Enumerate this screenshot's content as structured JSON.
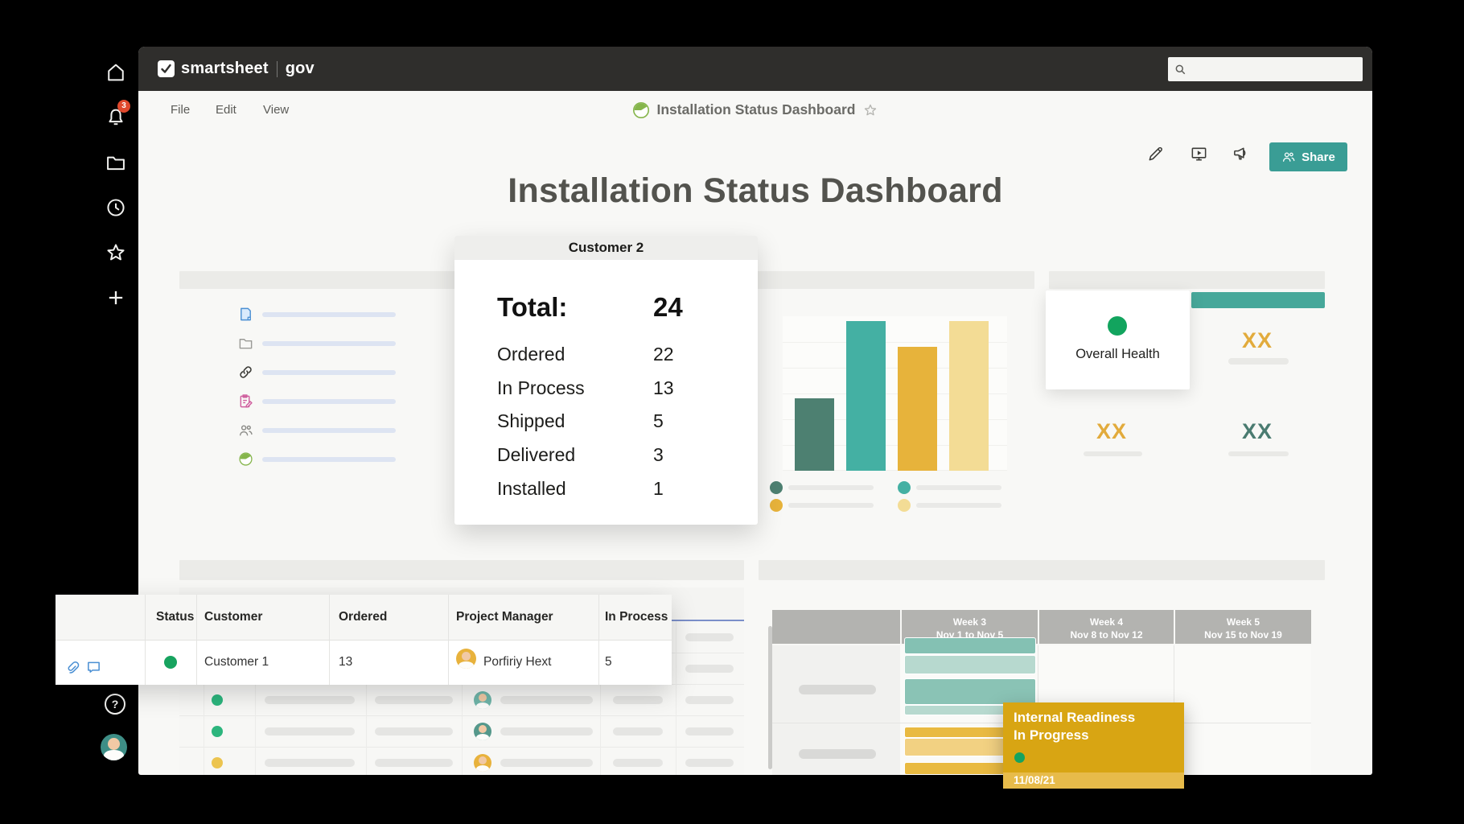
{
  "frame": {
    "brand": {
      "logo": "smartsheet",
      "suffix": "gov"
    },
    "sidebar": {
      "notification_badge": "3",
      "help_label": "?"
    }
  },
  "menubar": {
    "items": [
      "File",
      "Edit",
      "View"
    ],
    "doc_title": "Installation Status Dashboard",
    "share_label": "Share"
  },
  "dashboard": {
    "title": "Installation Status Dashboard",
    "customer_card": {
      "title": "Customer 2",
      "total_label": "Total:",
      "total_value": "24",
      "rows": [
        {
          "label": "Ordered",
          "value": "22"
        },
        {
          "label": "In Process",
          "value": "13"
        },
        {
          "label": "Shipped",
          "value": "5"
        },
        {
          "label": "Delivered",
          "value": "3"
        },
        {
          "label": "Installed",
          "value": "1"
        }
      ]
    },
    "health_card": {
      "label": "Overall Health",
      "status_color": "#12a45e"
    },
    "metrics": {
      "top_right": {
        "value": "XX",
        "color": "#e2ab3c"
      },
      "bottom_left": {
        "value": "XX",
        "color": "#e2ab3c"
      },
      "bottom_right": {
        "value": "XX",
        "color": "#4a7b70"
      }
    },
    "table": {
      "columns": [
        "Status",
        "Customer",
        "Ordered",
        "Project Manager",
        "In Process"
      ],
      "row": {
        "status_color": "#17a35f",
        "customer": "Customer 1",
        "ordered": "13",
        "project_manager": "Porfiriy Hext",
        "in_process": "5"
      }
    }
  },
  "chart_data": [
    {
      "type": "bar",
      "note": "Dashboard column-chart widget; axis and legend labels are placeholder bars with no text. Heights estimated as percent of plot height.",
      "values": [
        47,
        97,
        80,
        97
      ],
      "colors": [
        "#4d8071",
        "#44b0a3",
        "#e7b33b",
        "#f3dc95"
      ],
      "ylim": [
        0,
        100
      ],
      "grid": true,
      "legend_position": "bottom"
    },
    {
      "type": "gantt",
      "week_columns": [
        {
          "label": "Week 3",
          "range": "Nov 1 to Nov 5"
        },
        {
          "label": "Week 4",
          "range": "Nov 8 to Nov 12"
        },
        {
          "label": "Week 5",
          "range": "Nov 15 to Nov 19"
        }
      ],
      "rows": [
        {
          "bars": [
            {
              "column": "Week 3",
              "color": "#84c1b3"
            },
            {
              "column": "Week 3",
              "color": "#b7d9cf"
            },
            {
              "column": "Week 3",
              "color": "#8ac3b5"
            },
            {
              "column": "Week 3",
              "color": "#b7d9cf"
            }
          ]
        },
        {
          "bars": [
            {
              "column": "Week 3",
              "color": "#e9ba41"
            },
            {
              "column": "Week 3",
              "color": "#f2d182"
            },
            {
              "column": "Week 3",
              "color": "#e9ba41"
            }
          ]
        }
      ],
      "tooltip": {
        "task": "Internal Readiness",
        "status": "In Progress",
        "status_color": "#15a35f",
        "date": "11/08/21"
      }
    }
  ]
}
